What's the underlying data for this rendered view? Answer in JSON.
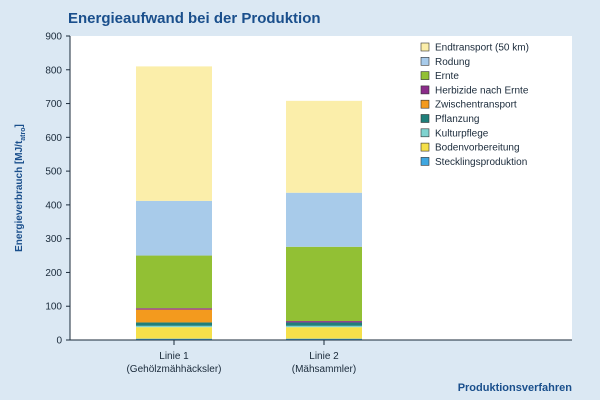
{
  "chart_data": {
    "type": "bar",
    "stacked": true,
    "title": "Energieaufwand bei der Produktion",
    "ylabel": "Energieverbrauch [MJ/t",
    "ylabel_sub": "atro",
    "ylabel_end": "]",
    "xlabel": "Produktionsverfahren",
    "ylim": [
      0,
      900
    ],
    "yticks": [
      0,
      100,
      200,
      300,
      400,
      500,
      600,
      700,
      800,
      900
    ],
    "grid": false,
    "legend_position": "top-right",
    "categories": [
      {
        "line1": "Linie 1",
        "line2": "(Gehölzmähhäcksler)"
      },
      {
        "line1": "Linie 2",
        "line2": "(Mähsammler)"
      }
    ],
    "series": [
      {
        "name": "Stecklingsproduktion",
        "color": "#3fa7e0",
        "values": [
          4,
          4
        ]
      },
      {
        "name": "Bodenvorbereitung",
        "color": "#f5e04a",
        "values": [
          34,
          34
        ]
      },
      {
        "name": "Kulturpflege",
        "color": "#7fd3cf",
        "values": [
          4,
          4
        ]
      },
      {
        "name": "Pflanzung",
        "color": "#1f7f7a",
        "values": [
          10,
          10
        ]
      },
      {
        "name": "Zwischentransport",
        "color": "#f39a1e",
        "values": [
          38,
          0
        ]
      },
      {
        "name": "Herbizide nach Ernte",
        "color": "#8b2c8a",
        "values": [
          4,
          4
        ]
      },
      {
        "name": "Ernte",
        "color": "#92c034",
        "values": [
          156,
          220
        ]
      },
      {
        "name": "Rodung",
        "color": "#a8cbea",
        "values": [
          162,
          160
        ]
      },
      {
        "name": "Endtransport (50 km)",
        "color": "#fbeeaa",
        "values": [
          398,
          272
        ]
      }
    ]
  }
}
